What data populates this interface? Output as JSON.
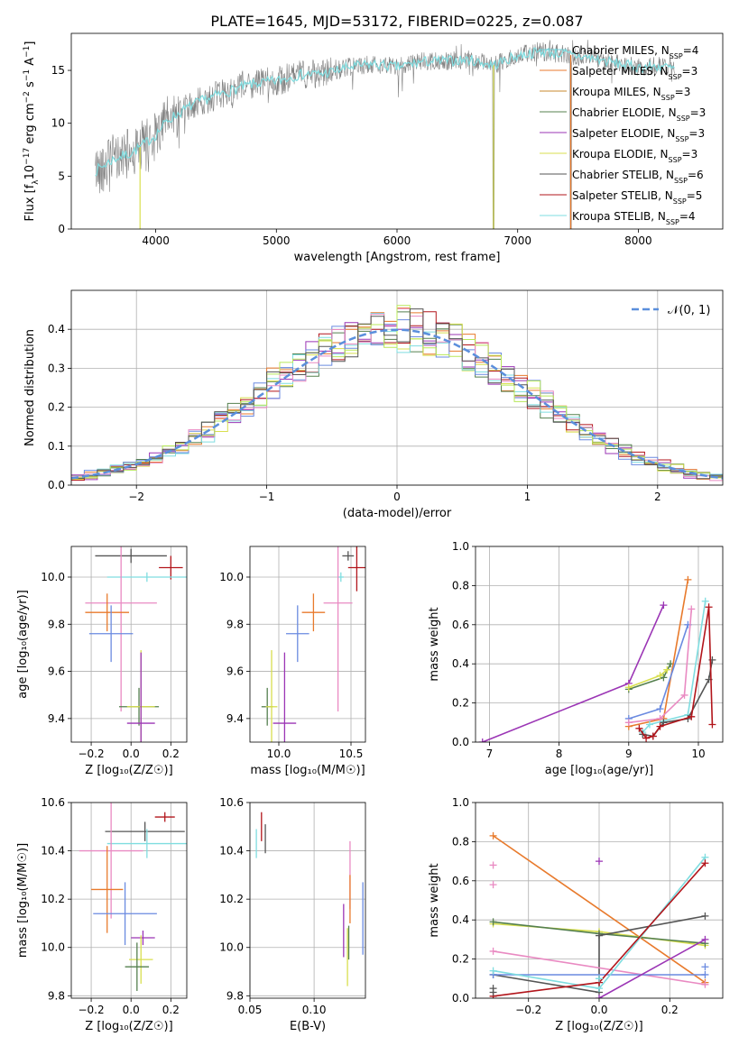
{
  "figure_title": "PLATE=1645, MJD=53172, FIBERID=0225, z=0.087",
  "palette": {
    "Chabrier MILES": "#6ed0d8",
    "Salpeter MILES": "#e87a2c",
    "Kroupa MILES": "#c9892d",
    "Chabrier ELODIE": "#55804f",
    "Salpeter ELODIE": "#9b35b5",
    "Kroupa ELODIE": "#d8df4f",
    "Chabrier STELIB": "#555555",
    "Salpeter STELIB": "#b2151b",
    "Kroupa STELIB": "#7fdde0",
    "spectrum": "#808080",
    "normal": "#5b8fdc",
    "extra_pink": "#e98ac2",
    "extra_lime": "#b8e85a",
    "extra_blue": "#6a8ae0"
  },
  "chart_data": [
    {
      "id": "spectrum",
      "type": "line",
      "title": "PLATE=1645, MJD=53172, FIBERID=0225, z=0.087",
      "xlabel": "wavelength [Angstrom, rest frame]",
      "ylabel_parts": [
        "Flux [f",
        "λ",
        "10",
        "−17",
        " erg cm",
        "−2",
        " s",
        "−1",
        " A",
        "−1",
        "]"
      ],
      "xlim": [
        3300,
        8700
      ],
      "ylim": [
        0,
        18.5
      ],
      "xticks": [
        4000,
        5000,
        6000,
        7000,
        8000
      ],
      "yticks": [
        0,
        5,
        10,
        15
      ],
      "grid": false,
      "legend_position": "top-right",
      "continuum": [
        [
          3500,
          5.5
        ],
        [
          3650,
          6.6
        ],
        [
          3800,
          7.2
        ],
        [
          3900,
          8.0
        ],
        [
          4000,
          8.9
        ],
        [
          4100,
          10.3
        ],
        [
          4200,
          11.0
        ],
        [
          4300,
          11.7
        ],
        [
          4400,
          12.2
        ],
        [
          4500,
          12.6
        ],
        [
          4600,
          13.0
        ],
        [
          4800,
          13.7
        ],
        [
          5000,
          14.0
        ],
        [
          5200,
          14.6
        ],
        [
          5400,
          14.7
        ],
        [
          5600,
          15.3
        ],
        [
          5800,
          15.6
        ],
        [
          6000,
          15.3
        ],
        [
          6200,
          15.8
        ],
        [
          6400,
          15.9
        ],
        [
          6600,
          16.0
        ],
        [
          6800,
          15.5
        ],
        [
          7000,
          16.4
        ],
        [
          7200,
          16.8
        ],
        [
          7400,
          16.5
        ],
        [
          7600,
          16.2
        ],
        [
          7800,
          15.7
        ],
        [
          8000,
          15.3
        ],
        [
          8200,
          15.4
        ],
        [
          8300,
          15.1
        ]
      ],
      "series": [
        {
          "label": "Chabrier MILES",
          "nssp": "4"
        },
        {
          "label": "Salpeter MILES",
          "nssp": "3"
        },
        {
          "label": "Kroupa MILES",
          "nssp": "3"
        },
        {
          "label": "Chabrier ELODIE",
          "nssp": "3"
        },
        {
          "label": "Salpeter ELODIE",
          "nssp": "3"
        },
        {
          "label": "Kroupa ELODIE",
          "nssp": "3"
        },
        {
          "label": "Chabrier STELIB",
          "nssp": "6"
        },
        {
          "label": "Salpeter STELIB",
          "nssp": "5"
        },
        {
          "label": "Kroupa STELIB",
          "nssp": "4"
        }
      ]
    },
    {
      "id": "residuals",
      "type": "line",
      "xlabel": "(data-model)/error",
      "ylabel": "Normed distribution",
      "xlim": [
        -2.5,
        2.5
      ],
      "ylim": [
        0,
        0.5
      ],
      "xticks": [
        -2,
        -1,
        0,
        1,
        2
      ],
      "yticks": [
        0.0,
        0.1,
        0.2,
        0.3,
        0.4
      ],
      "grid": true,
      "legend_position": "top-right",
      "legend_label": "𝒩(0, 1)",
      "bin_width": 0.1,
      "reference_curve": "standard normal pdf"
    },
    {
      "id": "z_age",
      "type": "scatter",
      "xlabel": "Z [log₁₀(Z/Z☉)]",
      "ylabel": "age  [log₁₀(age/yr)]",
      "xlim": [
        -0.3,
        0.28
      ],
      "ylim": [
        9.3,
        10.13
      ],
      "xticks": [
        -0.2,
        0.0,
        0.2
      ],
      "yticks": [
        9.4,
        9.6,
        9.8,
        10.0
      ],
      "grid": true,
      "points": [
        {
          "color": "#555555",
          "x": 0.0,
          "y": 10.09,
          "xerr": 0.18,
          "yerr": 0.03
        },
        {
          "color": "#b2151b",
          "x": 0.2,
          "y": 10.04,
          "xerr": 0.06,
          "yerr": 0.05
        },
        {
          "color": "#7fdde0",
          "x": 0.08,
          "y": 10.0,
          "xerr": 0.2,
          "yerr": 0.02
        },
        {
          "color": "#e98ac2",
          "x": -0.05,
          "y": 9.89,
          "xerr": 0.18,
          "yerr": 0.46
        },
        {
          "color": "#e87a2c",
          "x": -0.12,
          "y": 9.85,
          "xerr": 0.11,
          "yerr": 0.08
        },
        {
          "color": "#6a8ae0",
          "x": -0.1,
          "y": 9.76,
          "xerr": 0.11,
          "yerr": 0.12
        },
        {
          "color": "#55804f",
          "x": 0.04,
          "y": 9.45,
          "xerr": 0.1,
          "yerr": 0.08
        },
        {
          "color": "#d8df4f",
          "x": 0.05,
          "y": 9.45,
          "xerr": 0.07,
          "yerr": 0.24
        },
        {
          "color": "#9b35b5",
          "x": 0.05,
          "y": 9.38,
          "xerr": 0.07,
          "yerr": 0.3
        }
      ]
    },
    {
      "id": "mass_age",
      "type": "scatter",
      "xlabel": "mass [log₁₀(M/M☉)]",
      "ylabel": "",
      "xlim": [
        9.8,
        10.6
      ],
      "ylim": [
        9.3,
        10.13
      ],
      "xticks": [
        10.0,
        10.5
      ],
      "yticks": [
        9.4,
        9.6,
        9.8,
        10.0
      ],
      "grid": true,
      "points": [
        {
          "color": "#555555",
          "x": 10.48,
          "y": 10.09,
          "xerr": 0.04,
          "yerr": 0.02
        },
        {
          "color": "#b2151b",
          "x": 10.54,
          "y": 10.04,
          "xerr": 0.06,
          "yerr": 0.1
        },
        {
          "color": "#7fdde0",
          "x": 10.43,
          "y": 10.0,
          "xerr": 0.02,
          "yerr": 0.02
        },
        {
          "color": "#e98ac2",
          "x": 10.41,
          "y": 9.89,
          "xerr": 0.1,
          "yerr": 0.46
        },
        {
          "color": "#e87a2c",
          "x": 10.24,
          "y": 9.85,
          "xerr": 0.08,
          "yerr": 0.08
        },
        {
          "color": "#6a8ae0",
          "x": 10.13,
          "y": 9.76,
          "xerr": 0.08,
          "yerr": 0.12
        },
        {
          "color": "#55804f",
          "x": 9.92,
          "y": 9.45,
          "xerr": 0.04,
          "yerr": 0.08
        },
        {
          "color": "#d8df4f",
          "x": 9.95,
          "y": 9.45,
          "xerr": 0.04,
          "yerr": 0.24
        },
        {
          "color": "#9b35b5",
          "x": 10.04,
          "y": 9.38,
          "xerr": 0.08,
          "yerr": 0.3
        }
      ]
    },
    {
      "id": "age_weight",
      "type": "line",
      "xlabel": "age  [log₁₀(age/yr)]",
      "ylabel": "mass weight",
      "xlim": [
        6.8,
        10.35
      ],
      "ylim": [
        0,
        1
      ],
      "xticks": [
        7,
        8,
        9,
        10
      ],
      "yticks": [
        0.0,
        0.2,
        0.4,
        0.6,
        0.8,
        1.0
      ],
      "grid": true,
      "series": [
        {
          "color": "#9b35b5",
          "points": [
            [
              6.9,
              0.0
            ],
            [
              9.0,
              0.3
            ],
            [
              9.5,
              0.7
            ]
          ]
        },
        {
          "color": "#55804f",
          "points": [
            [
              9.0,
              0.27
            ],
            [
              9.5,
              0.33
            ],
            [
              9.6,
              0.4
            ]
          ]
        },
        {
          "color": "#d8df4f",
          "points": [
            [
              9.0,
              0.28
            ],
            [
              9.45,
              0.34
            ],
            [
              9.55,
              0.37
            ]
          ]
        },
        {
          "color": "#e87a2c",
          "points": [
            [
              9.0,
              0.08
            ],
            [
              9.5,
              0.12
            ],
            [
              9.85,
              0.83
            ]
          ]
        },
        {
          "color": "#6a8ae0",
          "points": [
            [
              9.0,
              0.12
            ],
            [
              9.45,
              0.17
            ],
            [
              9.85,
              0.6
            ]
          ]
        },
        {
          "color": "#e98ac2",
          "points": [
            [
              9.0,
              0.1
            ],
            [
              9.45,
              0.12
            ],
            [
              9.8,
              0.24
            ],
            [
              9.9,
              0.68
            ]
          ]
        },
        {
          "color": "#7fdde0",
          "points": [
            [
              9.2,
              0.05
            ],
            [
              9.3,
              0.09
            ],
            [
              9.85,
              0.14
            ],
            [
              10.1,
              0.72
            ]
          ]
        },
        {
          "color": "#555555",
          "points": [
            [
              9.2,
              0.04
            ],
            [
              9.35,
              0.03
            ],
            [
              9.5,
              0.1
            ],
            [
              9.85,
              0.12
            ],
            [
              10.15,
              0.32
            ],
            [
              10.2,
              0.42
            ]
          ]
        },
        {
          "color": "#b2151b",
          "points": [
            [
              9.15,
              0.07
            ],
            [
              9.25,
              0.02
            ],
            [
              9.35,
              0.03
            ],
            [
              9.45,
              0.08
            ],
            [
              9.9,
              0.13
            ],
            [
              10.15,
              0.69
            ],
            [
              10.2,
              0.09
            ]
          ]
        }
      ]
    },
    {
      "id": "z_mass",
      "type": "scatter",
      "xlabel": "Z [log₁₀(Z/Z☉)]",
      "ylabel": "mass [log₁₀(M/M☉)]",
      "xlim": [
        -0.3,
        0.28
      ],
      "ylim": [
        9.79,
        10.6
      ],
      "xticks": [
        -0.2,
        0.0,
        0.2
      ],
      "yticks": [
        9.8,
        10.0,
        10.2,
        10.4,
        10.6
      ],
      "grid": true,
      "points": [
        {
          "color": "#b2151b",
          "x": 0.17,
          "y": 10.54,
          "xerr": 0.05,
          "yerr": 0.02
        },
        {
          "color": "#555555",
          "x": 0.07,
          "y": 10.48,
          "xerr": 0.2,
          "yerr": 0.04
        },
        {
          "color": "#7fdde0",
          "x": 0.08,
          "y": 10.43,
          "xerr": 0.2,
          "yerr": 0.06
        },
        {
          "color": "#e98ac2",
          "x": -0.1,
          "y": 10.4,
          "xerr": 0.16,
          "yerr": 0.28
        },
        {
          "color": "#e87a2c",
          "x": -0.12,
          "y": 10.24,
          "xerr": 0.08,
          "yerr": 0.18
        },
        {
          "color": "#6a8ae0",
          "x": -0.03,
          "y": 10.14,
          "xerr": 0.16,
          "yerr": 0.13
        },
        {
          "color": "#9b35b5",
          "x": 0.06,
          "y": 10.04,
          "xerr": 0.06,
          "yerr": 0.03
        },
        {
          "color": "#d8df4f",
          "x": 0.05,
          "y": 9.95,
          "xerr": 0.06,
          "yerr": 0.1
        },
        {
          "color": "#55804f",
          "x": 0.03,
          "y": 9.92,
          "xerr": 0.06,
          "yerr": 0.1
        }
      ]
    },
    {
      "id": "ebv_mass",
      "type": "scatter",
      "xlabel": "E(B-V)",
      "ylabel": "",
      "xlim": [
        0.05,
        0.14
      ],
      "ylim": [
        9.79,
        10.6
      ],
      "xticks": [
        0.05,
        0.1
      ],
      "yticks": [
        9.8,
        10.0,
        10.2,
        10.4,
        10.6
      ],
      "grid": true,
      "points": [
        {
          "color": "#7fdde0",
          "x": 0.055,
          "y": 10.43,
          "xerr": 0,
          "yerr": 0.06
        },
        {
          "color": "#b2151b",
          "x": 0.059,
          "y": 10.5,
          "xerr": 0,
          "yerr": 0.06
        },
        {
          "color": "#555555",
          "x": 0.062,
          "y": 10.45,
          "xerr": 0,
          "yerr": 0.06
        },
        {
          "color": "#e98ac2",
          "x": 0.128,
          "y": 10.3,
          "xerr": 0,
          "yerr": 0.14
        },
        {
          "color": "#e87a2c",
          "x": 0.128,
          "y": 10.2,
          "xerr": 0,
          "yerr": 0.1
        },
        {
          "color": "#9b35b5",
          "x": 0.123,
          "y": 10.07,
          "xerr": 0,
          "yerr": 0.11
        },
        {
          "color": "#d8df4f",
          "x": 0.126,
          "y": 9.96,
          "xerr": 0,
          "yerr": 0.12
        },
        {
          "color": "#55804f",
          "x": 0.127,
          "y": 10.02,
          "xerr": 0,
          "yerr": 0.07
        },
        {
          "color": "#6a8ae0",
          "x": 0.138,
          "y": 10.12,
          "xerr": 0,
          "yerr": 0.15
        }
      ]
    },
    {
      "id": "z_weight",
      "type": "line",
      "xlabel": "Z [log₁₀(Z/Z☉)]",
      "ylabel": "mass weight",
      "xlim": [
        -0.35,
        0.35
      ],
      "ylim": [
        0,
        1
      ],
      "xticks": [
        -0.2,
        0.0,
        0.2
      ],
      "yticks": [
        0.0,
        0.2,
        0.4,
        0.6,
        0.8,
        1.0
      ],
      "grid": true,
      "series": [
        {
          "color": "#e87a2c",
          "points": [
            [
              -0.3,
              0.83
            ],
            [
              0.3,
              0.08
            ]
          ]
        },
        {
          "color": "#d8df4f",
          "points": [
            [
              -0.3,
              0.38
            ],
            [
              0.0,
              0.34
            ],
            [
              0.3,
              0.27
            ]
          ]
        },
        {
          "color": "#55804f",
          "points": [
            [
              -0.3,
              0.39
            ],
            [
              0.0,
              0.33
            ],
            [
              0.3,
              0.28
            ]
          ]
        },
        {
          "color": "#555555",
          "points": [
            [
              -0.3,
              0.12
            ],
            [
              0.0,
              0.03
            ],
            [
              0.0,
              0.32
            ],
            [
              0.3,
              0.42
            ]
          ]
        },
        {
          "color": "#e98ac2",
          "points": [
            [
              -0.3,
              0.24
            ],
            [
              0.3,
              0.07
            ]
          ]
        },
        {
          "color": "#6a8ae0",
          "points": [
            [
              -0.3,
              0.12
            ],
            [
              0.3,
              0.12
            ]
          ]
        },
        {
          "color": "#7fdde0",
          "points": [
            [
              -0.3,
              0.14
            ],
            [
              0.0,
              0.05
            ],
            [
              0.3,
              0.72
            ]
          ]
        },
        {
          "color": "#b2151b",
          "points": [
            [
              -0.3,
              0.01
            ],
            [
              0.0,
              0.08
            ],
            [
              0.3,
              0.69
            ]
          ]
        },
        {
          "color": "#9b35b5",
          "points": [
            [
              0.0,
              0.0
            ],
            [
              0.3,
              0.3
            ]
          ]
        }
      ],
      "markers": [
        {
          "color": "#e98ac2",
          "x": -0.3,
          "y": 0.68
        },
        {
          "color": "#e98ac2",
          "x": -0.3,
          "y": 0.58
        },
        {
          "color": "#9b35b5",
          "x": 0.0,
          "y": 0.7
        },
        {
          "color": "#555555",
          "x": -0.3,
          "y": 0.05
        },
        {
          "color": "#555555",
          "x": -0.3,
          "y": 0.03
        },
        {
          "color": "#6a8ae0",
          "x": 0.3,
          "y": 0.16
        },
        {
          "color": "#7fdde0",
          "x": 0.0,
          "y": 0.1
        }
      ]
    }
  ]
}
